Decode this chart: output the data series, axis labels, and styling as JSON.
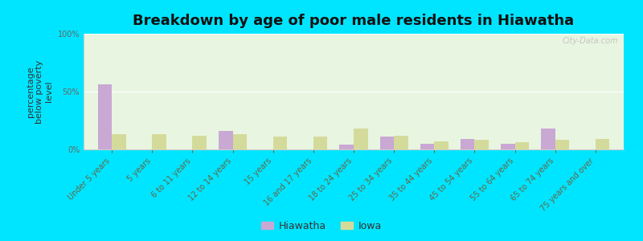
{
  "title": "Breakdown by age of poor male residents in Hiawatha",
  "categories": [
    "Under 5 years",
    "5 years",
    "6 to 11 years",
    "12 to 14 years",
    "15 years",
    "16 and 17 years",
    "18 to 24 years",
    "25 to 34 years",
    "35 to 44 years",
    "45 to 54 years",
    "55 to 64 years",
    "65 to 74 years",
    "75 years and over"
  ],
  "hiawatha_values": [
    56,
    0,
    0,
    16,
    0,
    0,
    4,
    11,
    5,
    9,
    5,
    18,
    0
  ],
  "iowa_values": [
    13,
    13,
    12,
    13,
    11,
    11,
    18,
    12,
    7,
    8,
    6,
    8,
    9
  ],
  "ylabel": "percentage\nbelow poverty\nlevel",
  "ylim": [
    0,
    100
  ],
  "yticks": [
    0,
    50,
    100
  ],
  "ytick_labels": [
    "0%",
    "50%",
    "100%"
  ],
  "hiawatha_color": "#c9a8d4",
  "iowa_color": "#d4db9a",
  "plot_bg_color": "#e8f5e0",
  "outer_bg": "#00e5ff",
  "bar_width": 0.35,
  "legend_hiawatha": "Hiawatha",
  "legend_iowa": "Iowa",
  "title_fontsize": 13,
  "axis_label_fontsize": 8,
  "tick_fontsize": 7,
  "legend_fontsize": 9,
  "watermark": "City-Data.com"
}
